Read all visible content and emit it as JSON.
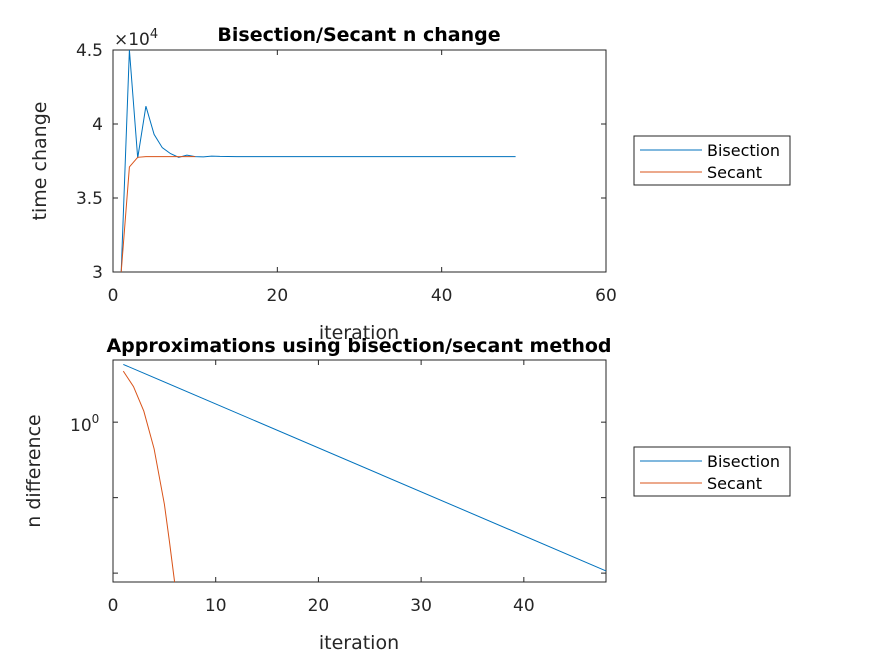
{
  "chart_data": [
    {
      "type": "line",
      "title": "Bisection/Secant n change",
      "xlabel": "iteration",
      "ylabel": "time change",
      "xlim": [
        0,
        60
      ],
      "ylim": [
        30000,
        45000
      ],
      "xticks": [
        0,
        20,
        40,
        60
      ],
      "yticks": [
        30000,
        35000,
        40000,
        45000
      ],
      "ytick_labels": [
        "3",
        "3.5",
        "4",
        "4.5"
      ],
      "exponent_label": "×10",
      "exponent_power": "4",
      "grid": false,
      "legend_position": "outside-right",
      "series": [
        {
          "name": "Bisection",
          "color": "#0072BD",
          "x": [
            1,
            2,
            3,
            4,
            5,
            6,
            7,
            8,
            9,
            10,
            11,
            12,
            13,
            14,
            15,
            20,
            25,
            30,
            35,
            40,
            45,
            49
          ],
          "y": [
            30000,
            45000,
            37700,
            41200,
            39300,
            38400,
            38000,
            37750,
            37900,
            37800,
            37780,
            37830,
            37810,
            37805,
            37800,
            37800,
            37800,
            37800,
            37800,
            37800,
            37800,
            37800
          ]
        },
        {
          "name": "Secant",
          "color": "#D95319",
          "x": [
            1,
            2,
            3,
            4,
            5,
            6,
            7,
            8,
            9,
            10
          ],
          "y": [
            30000,
            37100,
            37750,
            37800,
            37800,
            37800,
            37800,
            37800,
            37800,
            37800
          ]
        }
      ]
    },
    {
      "type": "line",
      "title": "Approximations using bisection/secant method",
      "xlabel": "iteration",
      "ylabel": "n difference",
      "xlim": [
        0,
        48
      ],
      "yscale": "log",
      "xticks": [
        0,
        10,
        20,
        30,
        40
      ],
      "ytick_label_base": "10",
      "ytick_label_power": "0",
      "grid": false,
      "legend_position": "outside-right",
      "series": [
        {
          "name": "Bisection",
          "color": "#0072BD",
          "x": [
            1,
            48
          ],
          "y_frac": [
            0.98,
            0.05
          ]
        },
        {
          "name": "Secant",
          "color": "#D95319",
          "x": [
            1,
            2,
            3,
            4,
            5,
            5.5,
            6
          ],
          "y_frac": [
            0.95,
            0.88,
            0.77,
            0.6,
            0.35,
            0.18,
            0.0
          ]
        }
      ]
    }
  ]
}
